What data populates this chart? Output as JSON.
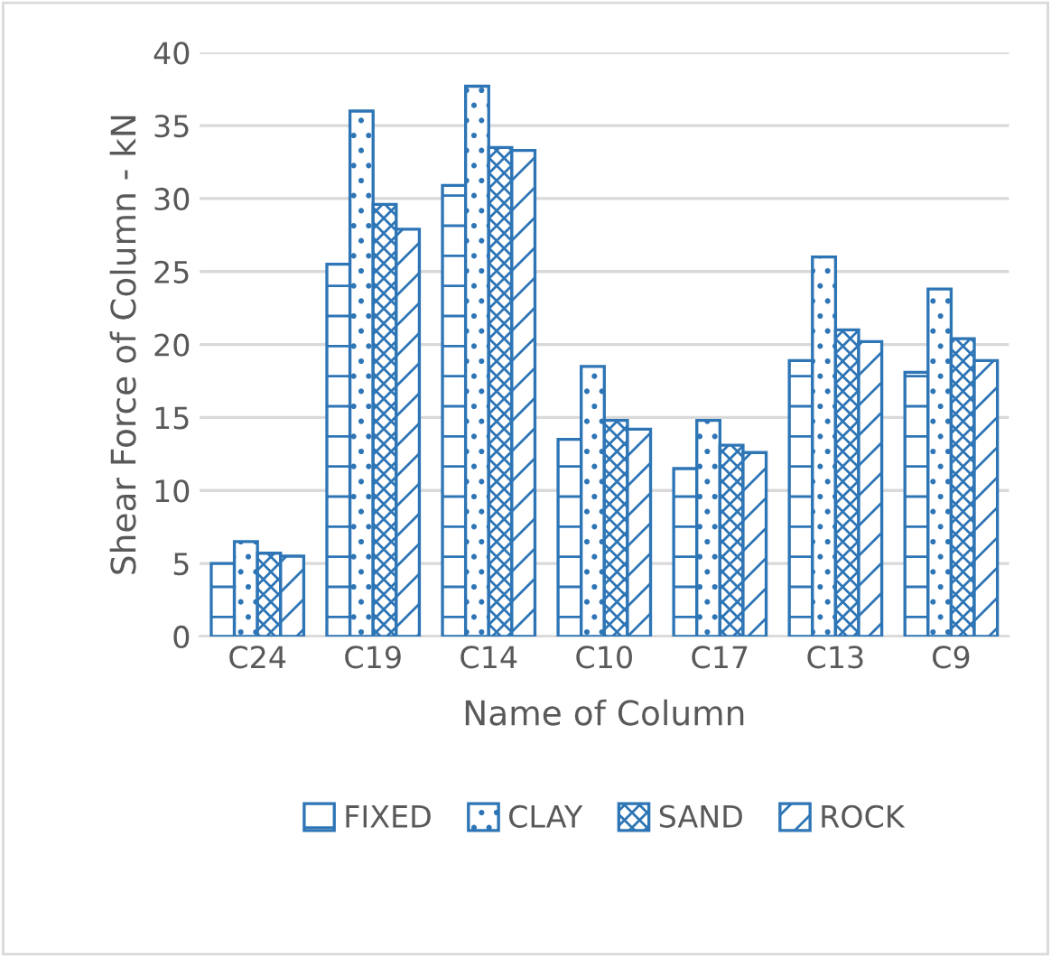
{
  "chart_data": {
    "type": "bar",
    "xlabel": "Name of Column",
    "ylabel": "Shear Force of Column - kN",
    "categories": [
      "C24",
      "C19",
      "C14",
      "C10",
      "C17",
      "C13",
      "C9"
    ],
    "series": [
      {
        "name": "FIXED",
        "color": "#2e75b6",
        "values": [
          5,
          25.5,
          30.9,
          13.5,
          11.5,
          18.9,
          18.1
        ]
      },
      {
        "name": "CLAY",
        "color": "#2e75b6",
        "values": [
          6.5,
          36,
          37.7,
          18.5,
          14.8,
          26,
          23.8
        ]
      },
      {
        "name": "SAND",
        "color": "#2e75b6",
        "values": [
          5.7,
          29.6,
          33.5,
          14.8,
          13.1,
          21,
          20.4
        ]
      },
      {
        "name": "ROCK",
        "color": "#2e75b6",
        "values": [
          5.5,
          27.9,
          33.3,
          14.2,
          12.6,
          20.2,
          18.9
        ]
      }
    ],
    "ylim": [
      0,
      40
    ],
    "yticks": [
      0,
      5,
      10,
      15,
      20,
      25,
      30,
      35,
      40
    ],
    "grid": "y",
    "legend": "bottom"
  }
}
